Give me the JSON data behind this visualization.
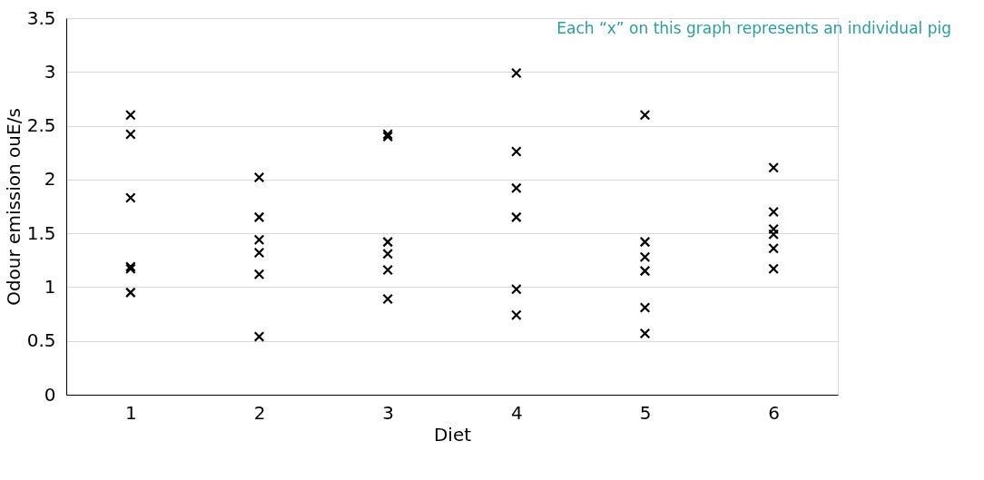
{
  "chart_data": {
    "type": "scatter",
    "xlabel": "Diet",
    "ylabel": "Odour emission ouE/s",
    "categories": [
      "1",
      "2",
      "3",
      "4",
      "5",
      "6"
    ],
    "series": [
      {
        "color": "#000000",
        "x": [
          "1",
          "1",
          "1",
          "1",
          "1",
          "1",
          "2",
          "2",
          "2",
          "2",
          "2",
          "2",
          "3",
          "3",
          "3",
          "3",
          "3",
          "3",
          "4",
          "4",
          "4",
          "4",
          "4",
          "4",
          "5",
          "5",
          "5",
          "5",
          "5",
          "5",
          "6",
          "6",
          "6",
          "6",
          "6",
          "6"
        ],
        "values": [
          2.6,
          2.42,
          1.83,
          1.19,
          1.17,
          0.95,
          2.02,
          1.65,
          1.44,
          1.32,
          1.12,
          0.54,
          2.42,
          2.4,
          1.42,
          1.31,
          1.16,
          0.89,
          2.99,
          2.26,
          1.92,
          1.65,
          0.98,
          0.74,
          2.6,
          1.42,
          1.28,
          1.15,
          0.81,
          0.57,
          2.11,
          1.7,
          1.54,
          1.49,
          1.36,
          1.17
        ]
      }
    ],
    "ylim": [
      0,
      3.5
    ],
    "yticks": [
      0,
      0.5,
      1,
      1.5,
      2,
      2.5,
      3,
      3.5
    ],
    "grid": "y",
    "marker": "cross",
    "legend": false,
    "annotations": [
      "Each “x” on this graph represents an individual pig"
    ]
  }
}
